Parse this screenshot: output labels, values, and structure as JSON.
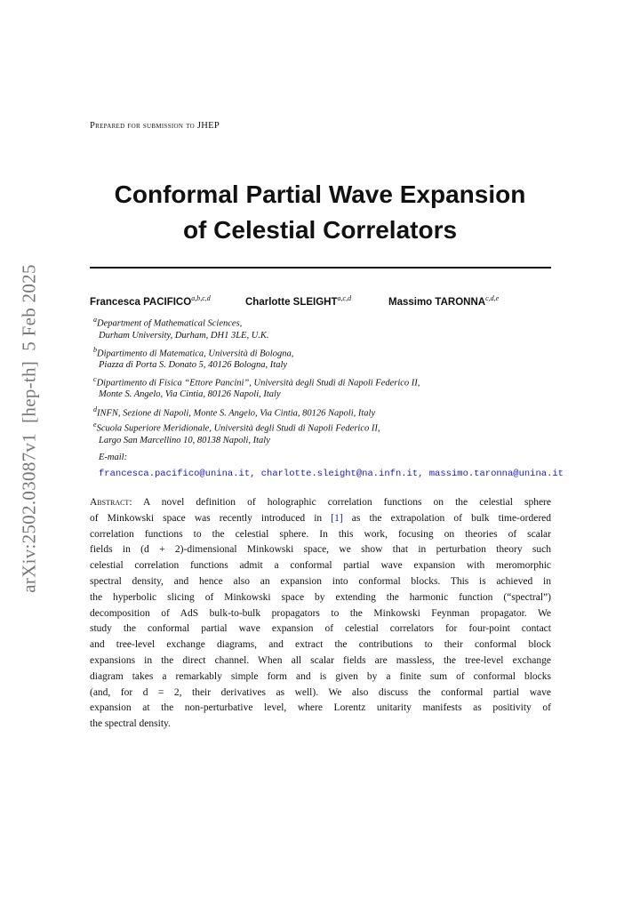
{
  "sidebar": "arXiv:2502.03087v1  [hep-th]  5 Feb 2025",
  "prepared": "Prepared for submission to JHEP",
  "title": [
    "Conformal Partial Wave Expansion",
    "of Celestial Correlators"
  ],
  "authors": [
    {
      "name": "Francesca PACIFICO",
      "affil": "a,b,c,d"
    },
    {
      "name": "Charlotte SLEIGHT",
      "affil": "a,c,d"
    },
    {
      "name": "Massimo TARONNA",
      "affil": "c,d,e"
    }
  ],
  "affiliations": [
    {
      "label": "a",
      "lines": [
        "Department of Mathematical Sciences,",
        "Durham University, Durham, DH1 3LE, U.K."
      ]
    },
    {
      "label": "b",
      "lines": [
        "Dipartimento di Matematica, Università di Bologna,",
        "Piazza di Porta S. Donato 5, 40126 Bologna, Italy"
      ]
    },
    {
      "label": "c",
      "lines": [
        "Dipartimento di Fisica “Ettore Pancini”, Università degli Studi di Napoli Federico II,",
        "Monte S. Angelo, Via Cintia, 80126 Napoli, Italy"
      ]
    },
    {
      "label": "d",
      "lines": [
        "INFN, Sezione di Napoli, Monte S. Angelo, Via Cintia, 80126 Napoli, Italy"
      ]
    },
    {
      "label": "e",
      "lines": [
        "Scuola Superiore Meridionale, Università degli Studi di Napoli Federico II,",
        "Largo San Marcellino 10, 80138 Napoli, Italy"
      ]
    }
  ],
  "email": {
    "label": "E-mail:",
    "addresses": "francesca.pacifico@unina.it, charlotte.sleight@na.infn.it, massimo.taronna@unina.it"
  },
  "abstract": {
    "label": "Abstract:",
    "first_line": "A novel definition of holographic correlation functions on the celestial sphere",
    "cite_line": {
      "pre": "of Minkowski space was recently introduced in",
      "cite": "[1]",
      "post": "as the extrapolation of bulk time-ordered"
    },
    "lines": [
      "correlation functions to the celestial sphere.  In this work, focusing on theories of scalar",
      "fields in (d + 2)-dimensional Minkowski space, we show that in perturbation theory such",
      "celestial correlation functions admit a conformal partial wave expansion with meromorphic",
      "spectral density, and hence also an expansion into conformal blocks.  This is achieved in",
      "the hyperbolic slicing of Minkowski space by extending the harmonic function (“spectral”)",
      "decomposition of AdS bulk-to-bulk propagators to the Minkowski Feynman propagator.  We",
      "study the conformal partial wave expansion of celestial correlators for four-point contact",
      "and tree-level exchange diagrams, and extract the contributions to their conformal block",
      "expansions in the direct channel.  When all scalar fields are massless, the tree-level exchange",
      "diagram takes a remarkably simple form and is given by a finite sum of conformal blocks",
      "(and, for d = 2, their derivatives as well).  We also discuss the conformal partial wave",
      "expansion at the non-perturbative level, where Lorentz unitarity manifests as positivity of",
      "the spectral density."
    ]
  }
}
